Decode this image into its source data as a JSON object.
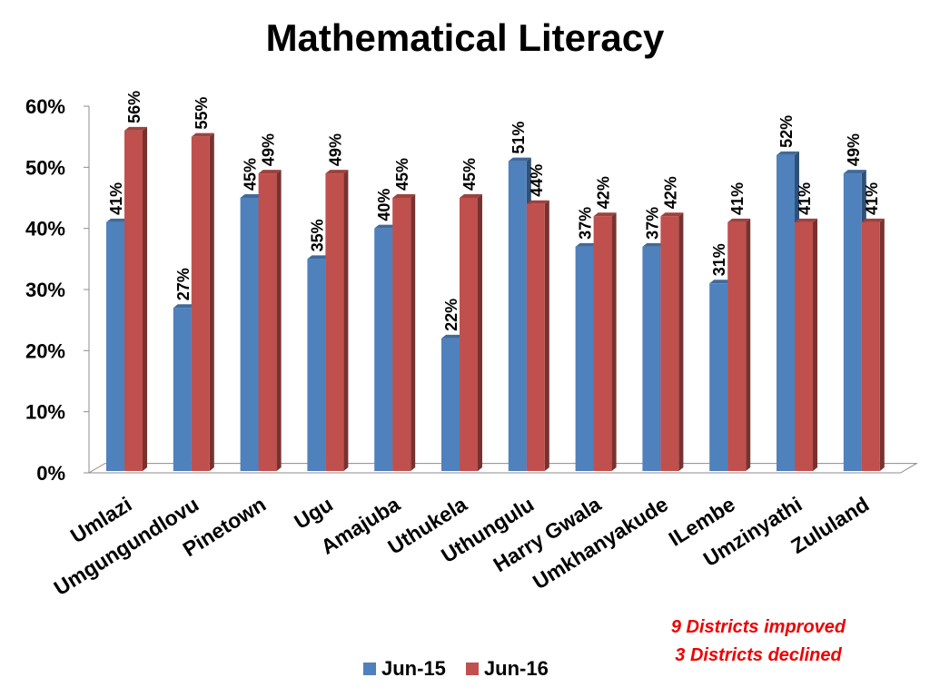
{
  "chart_data": {
    "type": "bar",
    "title": "Mathematical Literacy",
    "categories": [
      "Umlazi",
      "Umgungundlovu",
      "Pinetown",
      "Ugu",
      "Amajuba",
      "Uthukela",
      "Uthungulu",
      "Harry Gwala",
      "Umkhanyakude",
      "ILembe",
      "Umzinyathi",
      "Zululand"
    ],
    "series": [
      {
        "name": "Jun-15",
        "color": "#4f81bd",
        "values": [
          41,
          27,
          45,
          35,
          40,
          22,
          51,
          37,
          37,
          31,
          52,
          49
        ],
        "labels": [
          "41%",
          "27%",
          "45%",
          "35%",
          "40%",
          "22%",
          "51%",
          "37%",
          "37%",
          "31%",
          "52%",
          "49%"
        ]
      },
      {
        "name": "Jun-16",
        "color": "#c0504d",
        "values": [
          56,
          55,
          49,
          49,
          45,
          45,
          44,
          42,
          42,
          41,
          41,
          41
        ],
        "labels": [
          "56%",
          "55%",
          "49%",
          "49%",
          "45%",
          "45%",
          "44%",
          "42%",
          "42%",
          "41%",
          "41%",
          "41%"
        ]
      }
    ],
    "ylim": [
      0,
      60
    ],
    "yticks": [
      "0%",
      "10%",
      "20%",
      "30%",
      "40%",
      "50%",
      "60%"
    ],
    "grid": false,
    "legend": "bottom",
    "style": "3d-column"
  },
  "annotation": {
    "line1": "9 Districts improved",
    "line2": "3 Districts declined",
    "color": "#ee0000"
  }
}
